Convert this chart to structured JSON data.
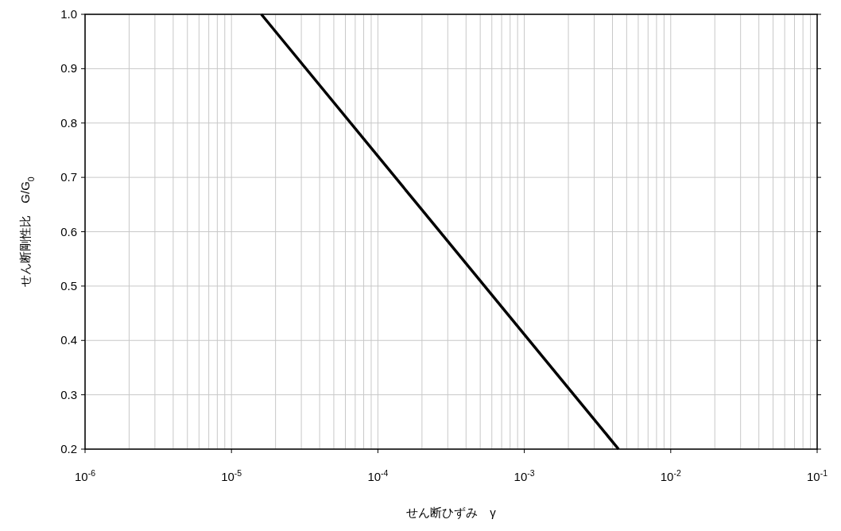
{
  "chart_data": {
    "type": "line",
    "xlabel": "せん断ひずみ　γ",
    "ylabel": "せん断剛性比　G/G$_{0}$",
    "log": "x",
    "x": [
      1.6e-05,
      0.0044
    ],
    "series": [
      {
        "color": "#000000",
        "values": [
          1.0,
          0.2
        ]
      }
    ],
    "xlim": [
      1e-06,
      0.1
    ],
    "xticks": [
      {
        "value": 1e-06,
        "label": "10$^{-6}$"
      },
      {
        "value": 1e-05,
        "label": "10$^{-5}$"
      },
      {
        "value": 0.0001,
        "label": "10$^{-4}$"
      },
      {
        "value": 0.001,
        "label": "10$^{-3}$"
      },
      {
        "value": 0.01,
        "label": "10$^{-2}$"
      },
      {
        "value": 0.1,
        "label": "10$^{-1}$"
      }
    ],
    "ylim": [
      0.2,
      1.0
    ],
    "yticks": [
      {
        "value": 0.2,
        "label": "0.2"
      },
      {
        "value": 0.3,
        "label": "0.3"
      },
      {
        "value": 0.4,
        "label": "0.4"
      },
      {
        "value": 0.5,
        "label": "0.5"
      },
      {
        "value": 0.6,
        "label": "0.6"
      },
      {
        "value": 0.7,
        "label": "0.7"
      },
      {
        "value": 0.8,
        "label": "0.8"
      },
      {
        "value": 0.9,
        "label": "0.9"
      },
      {
        "value": 1.0,
        "label": "1.0"
      }
    ],
    "grid": true,
    "marker": "none",
    "line_style": "solid"
  }
}
